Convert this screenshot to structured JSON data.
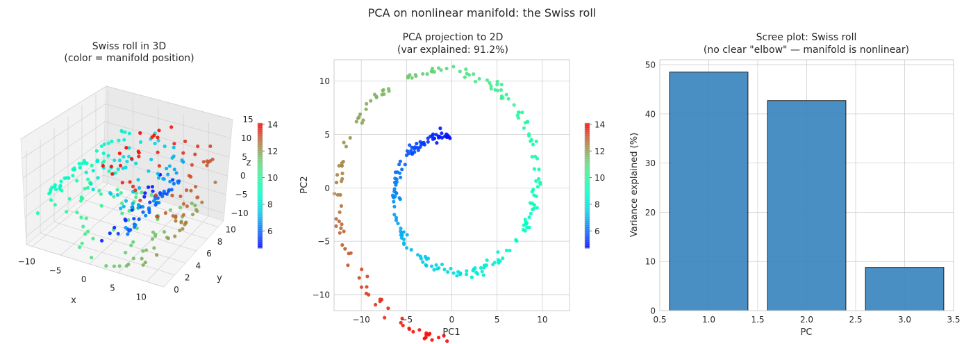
{
  "suptitle": "PCA on nonlinear manifold: the Swiss roll",
  "chart_data": [
    {
      "type": "scatter3d",
      "title": "Swiss roll in 3D",
      "subtitle": "(color = manifold position)",
      "xlabel": "x",
      "ylabel": "y",
      "zlabel": "z",
      "xticks": [
        "−10",
        "−5",
        "0",
        "5",
        "10"
      ],
      "yticks": [
        "0",
        "2",
        "4",
        "6",
        "8",
        "10"
      ],
      "zticks": [
        "−10",
        "−5",
        "0",
        "5",
        "10",
        "15"
      ],
      "xlim": [
        -11,
        13
      ],
      "ylim": [
        0,
        11
      ],
      "zlim": [
        -12,
        15
      ],
      "n_points": 300,
      "t_range": [
        4.71,
        14.1
      ],
      "colorbar": {
        "ticks": [
          "6",
          "8",
          "10",
          "12",
          "14"
        ],
        "range": [
          4.71,
          14.1
        ],
        "colormap": "rainbow"
      }
    },
    {
      "type": "scatter",
      "title": "PCA projection to 2D",
      "subtitle": "(var explained: 91.2%)",
      "xlabel": "PC1",
      "ylabel": "PC2",
      "xlim": [
        -13,
        13
      ],
      "ylim": [
        -11.5,
        12
      ],
      "xticks": [
        "−10",
        "−5",
        "0",
        "5",
        "10"
      ],
      "yticks": [
        "−10",
        "−5",
        "0",
        "5",
        "10"
      ],
      "n_points": 300,
      "t_range": [
        4.71,
        14.1
      ],
      "description": "spiral: PC1 ≈ t·cos(t) sign-flipped, PC2 ≈ t·sin(t) sign-flipped",
      "colorbar": {
        "ticks": [
          "6",
          "8",
          "10",
          "12",
          "14"
        ],
        "range": [
          4.71,
          14.1
        ],
        "colormap": "rainbow"
      }
    },
    {
      "type": "bar",
      "title": "Scree plot: Swiss roll",
      "subtitle": "(no clear \"elbow\" — manifold is nonlinear)",
      "xlabel": "PC",
      "ylabel": "Variance explained (%)",
      "x": [
        1.0,
        2.0,
        3.0
      ],
      "values": [
        48.5,
        42.7,
        8.8
      ],
      "xlim": [
        0.5,
        3.5
      ],
      "ylim": [
        0,
        51
      ],
      "xticks": [
        "0.5",
        "1.0",
        "1.5",
        "2.0",
        "2.5",
        "3.0",
        "3.5"
      ],
      "yticks": [
        "0",
        "10",
        "20",
        "30",
        "40",
        "50"
      ],
      "bar_color": "#3a85be",
      "edge_color": "#1a1a1a"
    }
  ],
  "colors": {
    "grid": "#cfcfcf",
    "spine": "#cccccc",
    "pane": "#f2f2f2",
    "pane_dark": "#e9e9e9"
  }
}
